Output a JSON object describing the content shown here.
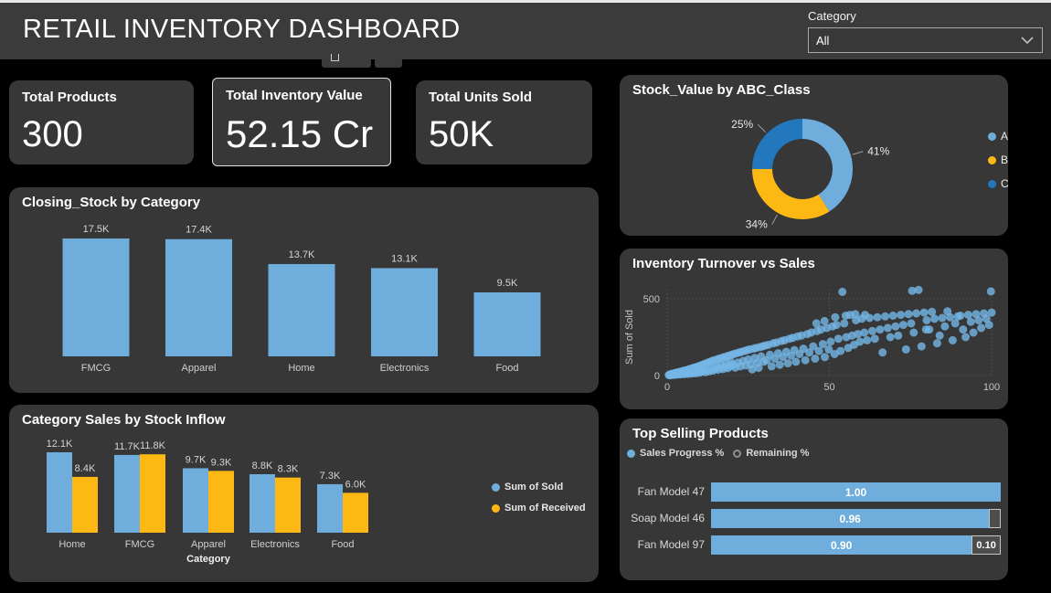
{
  "header": {
    "title": "RETAIL INVENTORY DASHBOARD",
    "slicer_label": "Category",
    "slicer_value": "All"
  },
  "kpis": [
    {
      "label": "Total Products",
      "value": "300",
      "selected": false
    },
    {
      "label": "Total Inventory Value",
      "value": "52.15 Cr",
      "selected": true
    },
    {
      "label": "Total Units Sold",
      "value": "50K",
      "selected": false
    }
  ],
  "colors": {
    "blue": "#6FAEDC",
    "scatter_blue": "#74B7E6",
    "yellow": "#FDB813",
    "dark_blue": "#2377BD",
    "remaining_gray": "#4D4D4D",
    "card_bg": "#373737",
    "header_bg": "#3B3B3B",
    "muted_text": "#CFCFCF"
  },
  "chart_data": [
    {
      "id": "closing_stock",
      "type": "bar",
      "title": "Closing_Stock by Category",
      "categories": [
        "FMCG",
        "Apparel",
        "Home",
        "Electronics",
        "Food"
      ],
      "values": [
        17500,
        17400,
        13700,
        13100,
        9500
      ],
      "labels": [
        "17.5K",
        "17.4K",
        "13.7K",
        "13.1K",
        "9.5K"
      ],
      "ymax": 17500,
      "grid": false,
      "legend": "none"
    },
    {
      "id": "category_sales",
      "type": "bar",
      "title": "Category Sales by Stock Inflow",
      "xlabel": "Category",
      "categories": [
        "Home",
        "FMCG",
        "Apparel",
        "Electronics",
        "Food"
      ],
      "series": [
        {
          "name": "Sum of Sold",
          "values": [
            12100,
            11700,
            9700,
            8800,
            7300
          ],
          "labels": [
            "12.1K",
            "11.7K",
            "9.7K",
            "8.8K",
            "7.3K"
          ]
        },
        {
          "name": "Sum of Received",
          "values": [
            8400,
            11800,
            9300,
            8300,
            6000
          ],
          "labels": [
            "8.4K",
            "11.8K",
            "9.3K",
            "8.3K",
            "6.0K"
          ]
        }
      ],
      "ymax": 12100,
      "grid": false,
      "legend": "right"
    },
    {
      "id": "stock_value",
      "type": "pie",
      "title": "Stock_Value by ABC_Class",
      "donut": true,
      "legend": "right",
      "slices": [
        {
          "label": "A",
          "pct": 41,
          "pct_label": "41%"
        },
        {
          "label": "B",
          "pct": 34,
          "pct_label": "34%"
        },
        {
          "label": "C",
          "pct": 25,
          "pct_label": "25%"
        }
      ]
    },
    {
      "id": "turnover_vs_sales",
      "type": "scatter",
      "title": "Inventory Turnover vs Sales",
      "ylabel": "Sum of Sold",
      "yticks": [
        0,
        500
      ],
      "xticks": [
        0,
        50,
        100
      ],
      "xlim": [
        0,
        100
      ],
      "ylim": [
        0,
        560
      ],
      "grid": "dotted",
      "points": [
        [
          0.5,
          3
        ],
        [
          0.8,
          6
        ],
        [
          1,
          2
        ],
        [
          1.2,
          10
        ],
        [
          1.5,
          5
        ],
        [
          1.8,
          12
        ],
        [
          2,
          4
        ],
        [
          2.2,
          15
        ],
        [
          2.5,
          8
        ],
        [
          2.8,
          18
        ],
        [
          3,
          6
        ],
        [
          3.2,
          20
        ],
        [
          3.5,
          10
        ],
        [
          3.8,
          24
        ],
        [
          4,
          7
        ],
        [
          4.3,
          26
        ],
        [
          4.6,
          12
        ],
        [
          4.9,
          30
        ],
        [
          5.2,
          9
        ],
        [
          5.5,
          33
        ],
        [
          5.8,
          14
        ],
        [
          6.1,
          36
        ],
        [
          6.4,
          11
        ],
        [
          6.7,
          40
        ],
        [
          7,
          16
        ],
        [
          7.3,
          44
        ],
        [
          7.6,
          13
        ],
        [
          7.9,
          48
        ],
        [
          8.2,
          18
        ],
        [
          8.5,
          52
        ],
        [
          8.8,
          15
        ],
        [
          9.1,
          56
        ],
        [
          9.4,
          22
        ],
        [
          9.7,
          60
        ],
        [
          10,
          18
        ],
        [
          10.3,
          65
        ],
        [
          10.6,
          25
        ],
        [
          10.9,
          70
        ],
        [
          11.2,
          30
        ],
        [
          11.5,
          75
        ],
        [
          11.8,
          22
        ],
        [
          12.1,
          80
        ],
        [
          12.4,
          35
        ],
        [
          12.7,
          85
        ],
        [
          13,
          28
        ],
        [
          13.3,
          90
        ],
        [
          13.6,
          40
        ],
        [
          13.9,
          95
        ],
        [
          14.2,
          32
        ],
        [
          14.5,
          100
        ],
        [
          14.8,
          45
        ],
        [
          15.1,
          60
        ],
        [
          15.4,
          105
        ],
        [
          15.7,
          38
        ],
        [
          16,
          110
        ],
        [
          16.3,
          50
        ],
        [
          16.6,
          70
        ],
        [
          16.9,
          115
        ],
        [
          17.2,
          42
        ],
        [
          17.5,
          120
        ],
        [
          17.8,
          55
        ],
        [
          18.1,
          80
        ],
        [
          18.4,
          125
        ],
        [
          18.7,
          48
        ],
        [
          19,
          130
        ],
        [
          19.3,
          60
        ],
        [
          19.6,
          90
        ],
        [
          19.9,
          135
        ],
        [
          20.2,
          70
        ],
        [
          20.6,
          140
        ],
        [
          21,
          52
        ],
        [
          21.4,
          145
        ],
        [
          21.8,
          85
        ],
        [
          22.2,
          150
        ],
        [
          22.6,
          60
        ],
        [
          23,
          155
        ],
        [
          23.4,
          95
        ],
        [
          23.8,
          160
        ],
        [
          24.2,
          66
        ],
        [
          24.6,
          165
        ],
        [
          25,
          105
        ],
        [
          25.4,
          170
        ],
        [
          25.8,
          74
        ],
        [
          26.2,
          40
        ],
        [
          26.6,
          175
        ],
        [
          27,
          115
        ],
        [
          27.4,
          180
        ],
        [
          27.8,
          82
        ],
        [
          28.2,
          50
        ],
        [
          28.6,
          185
        ],
        [
          29,
          125
        ],
        [
          29.4,
          190
        ],
        [
          29.8,
          90
        ],
        [
          30.2,
          195
        ],
        [
          30.7,
          100
        ],
        [
          31.2,
          200
        ],
        [
          31.7,
          135
        ],
        [
          32.2,
          60
        ],
        [
          32.7,
          210
        ],
        [
          33.2,
          110
        ],
        [
          33.7,
          215
        ],
        [
          34.2,
          145
        ],
        [
          34.7,
          70
        ],
        [
          35.2,
          225
        ],
        [
          35.7,
          120
        ],
        [
          36.2,
          230
        ],
        [
          36.7,
          155
        ],
        [
          37.2,
          80
        ],
        [
          37.7,
          240
        ],
        [
          38.2,
          130
        ],
        [
          38.7,
          245
        ],
        [
          39.2,
          165
        ],
        [
          39.7,
          90
        ],
        [
          40.2,
          255
        ],
        [
          40.8,
          140
        ],
        [
          41.4,
          260
        ],
        [
          42,
          175
        ],
        [
          42.6,
          100
        ],
        [
          43.2,
          270
        ],
        [
          43.8,
          150
        ],
        [
          44.4,
          280
        ],
        [
          45,
          190
        ],
        [
          45.6,
          110
        ],
        [
          46,
          340
        ],
        [
          46.2,
          290
        ],
        [
          46.8,
          160
        ],
        [
          47.4,
          300
        ],
        [
          48,
          205
        ],
        [
          48.5,
          355
        ],
        [
          48.6,
          120
        ],
        [
          49.2,
          310
        ],
        [
          49.8,
          170
        ],
        [
          50.4,
          220
        ],
        [
          51,
          320
        ],
        [
          51.6,
          140
        ],
        [
          51.8,
          380
        ],
        [
          52.2,
          330
        ],
        [
          52.8,
          240
        ],
        [
          53.4,
          160
        ],
        [
          54,
          545
        ],
        [
          54.6,
          340
        ],
        [
          55,
          390
        ],
        [
          55.2,
          250
        ],
        [
          55.8,
          180
        ],
        [
          56.4,
          395
        ],
        [
          57,
          260
        ],
        [
          57.6,
          200
        ],
        [
          58,
          400
        ],
        [
          58.2,
          360
        ],
        [
          58.8,
          270
        ],
        [
          59.4,
          220
        ],
        [
          61,
          395
        ],
        [
          60,
          370
        ],
        [
          60.8,
          280
        ],
        [
          61.6,
          230
        ],
        [
          62.4,
          375
        ],
        [
          63.2,
          290
        ],
        [
          64,
          240
        ],
        [
          64.8,
          380
        ],
        [
          65.6,
          300
        ],
        [
          66.4,
          150
        ],
        [
          67.2,
          385
        ],
        [
          68,
          310
        ],
        [
          68.8,
          250
        ],
        [
          69.6,
          390
        ],
        [
          70.4,
          320
        ],
        [
          71.2,
          260
        ],
        [
          72,
          395
        ],
        [
          72.8,
          330
        ],
        [
          73.6,
          170
        ],
        [
          74.4,
          400
        ],
        [
          75.2,
          340
        ],
        [
          75.5,
          552
        ],
        [
          76,
          280
        ],
        [
          76.8,
          405
        ],
        [
          77.5,
          558
        ],
        [
          78.4,
          190
        ],
        [
          79.2,
          410
        ],
        [
          79.8,
          300
        ],
        [
          80,
          360
        ],
        [
          80.8,
          300
        ],
        [
          81.6,
          415
        ],
        [
          82.4,
          370
        ],
        [
          83.2,
          210
        ],
        [
          84,
          260
        ],
        [
          84.8,
          375
        ],
        [
          85.6,
          320
        ],
        [
          86.4,
          418
        ],
        [
          87.2,
          380
        ],
        [
          88,
          230
        ],
        [
          88.8,
          340
        ],
        [
          89.6,
          385
        ],
        [
          90.4,
          390
        ],
        [
          91.2,
          300
        ],
        [
          92,
          250
        ],
        [
          92.8,
          395
        ],
        [
          93.6,
          350
        ],
        [
          94.4,
          280
        ],
        [
          95.2,
          400
        ],
        [
          96,
          360
        ],
        [
          96.8,
          310
        ],
        [
          97.6,
          405
        ],
        [
          98.4,
          370
        ],
        [
          99.2,
          330
        ],
        [
          99.8,
          548
        ],
        [
          100,
          410
        ]
      ]
    },
    {
      "id": "top_selling",
      "type": "bar-horizontal-stacked",
      "title": "Top Selling Products",
      "legend": [
        "Sales Progress %",
        "Remaining %"
      ],
      "rows": [
        {
          "label": "Fan Model 47",
          "progress": 1.0,
          "progress_label": "1.00",
          "remaining": 0.0,
          "remaining_label": ""
        },
        {
          "label": "Soap Model 46",
          "progress": 0.96,
          "progress_label": "0.96",
          "remaining": 0.04,
          "remaining_label": ""
        },
        {
          "label": "Fan Model 97",
          "progress": 0.9,
          "progress_label": "0.90",
          "remaining": 0.1,
          "remaining_label": "0.10"
        }
      ]
    }
  ]
}
